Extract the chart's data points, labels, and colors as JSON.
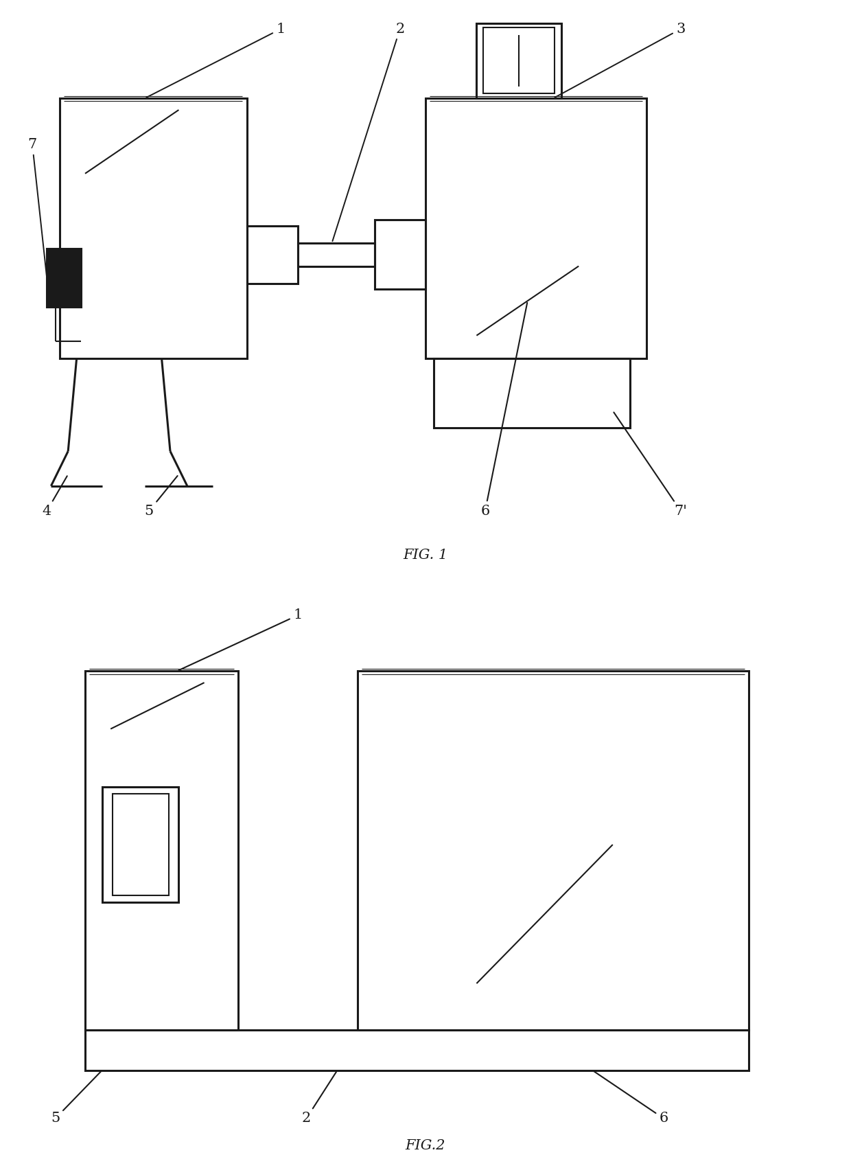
{
  "bg_color": "#ffffff",
  "lc": "#1a1a1a",
  "lw": 2.2,
  "tlw": 1.5,
  "fig1": {
    "caption": "FIG. 1"
  },
  "fig2": {
    "caption": "FIG.2"
  }
}
